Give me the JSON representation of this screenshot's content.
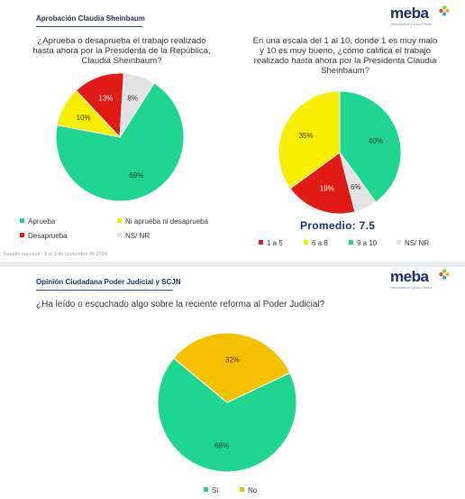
{
  "colors": {
    "green": "#1fd690",
    "yellow": "#f7ef00",
    "red": "#e01b16",
    "gray": "#e3e3e3",
    "orange": "#f5c000",
    "navy": "#1b2f5c",
    "logo_accent": "#8ccf3e"
  },
  "top": {
    "header": "Aprobación Claudia Sheinbaum",
    "logo": {
      "text": "meba",
      "sub": "Mercadotecnia y Acción Pública"
    },
    "footnote": "Estudio nacional - 1 al 3 de noviembre de 2024"
  },
  "bottom": {
    "header": "Opinión Ciudadana Poder Judicial y SCJN",
    "logo": {
      "text": "meba",
      "sub": "Mercadotecnia y Acción Pública"
    }
  },
  "chart_data": [
    {
      "type": "pie",
      "title": "¿Aprueba o desaprueba el trabajo realizado hasta ahora por la Presidenta de la República, Claudia Sheinbaum?",
      "title_lines": [
        "¿Aprueba o desaprueba el trabajo realizado",
        "hasta ahora por la Presidenta de la República,",
        "Claudia Sheinbaum?"
      ],
      "categories": [
        "Aprueba",
        "Ni aprueba ni desaprueba",
        "Desaprueba",
        "NS/ NR"
      ],
      "values": [
        69,
        10,
        13,
        8
      ],
      "labels": [
        "69%",
        "10%",
        "13%",
        "8%"
      ],
      "colors": [
        "#1fd690",
        "#f7ef00",
        "#e01b16",
        "#e3e3e3"
      ]
    },
    {
      "type": "pie",
      "title": "En una escala del 1 al 10, donde 1 es muy malo y 10 es muy bueno, ¿cómo califica el trabajo realizado hasta ahora por la Presidenta Claudia Sheinbaum?",
      "title_lines": [
        "En una escala del 1 al 10, donde 1 es muy malo",
        "y 10 es muy bueno, ¿cómo califica el trabajo",
        "realizado hasta ahora por la Presidenta Claudia",
        "Sheinbaum?"
      ],
      "categories": [
        "9 a 10",
        "NS/ NR",
        "1 a 5",
        "6 a 8"
      ],
      "values": [
        40,
        6,
        19,
        35
      ],
      "labels": [
        "40%",
        "6%",
        "19%",
        "35%"
      ],
      "colors": [
        "#1fd690",
        "#e3e3e3",
        "#e01b16",
        "#f7ef00"
      ],
      "legend_order": [
        "1 a 5",
        "6 a 8",
        "9 a 10",
        "NS/ NR"
      ],
      "legend_colors": [
        "#e01b16",
        "#f7ef00",
        "#1fd690",
        "#e3e3e3"
      ],
      "promedio": "Promedio: 7.5"
    },
    {
      "type": "pie",
      "title": "¿Ha leído o escuchado algo sobre la reciente reforma al Poder Judicial?",
      "title_lines": [
        "¿Ha leído o escuchado algo sobre la reciente reforma al Poder Judicial?"
      ],
      "categories": [
        "Sí",
        "No"
      ],
      "values": [
        68,
        32
      ],
      "labels": [
        "68%",
        "32%"
      ],
      "colors": [
        "#1fd690",
        "#f5c000"
      ]
    }
  ]
}
